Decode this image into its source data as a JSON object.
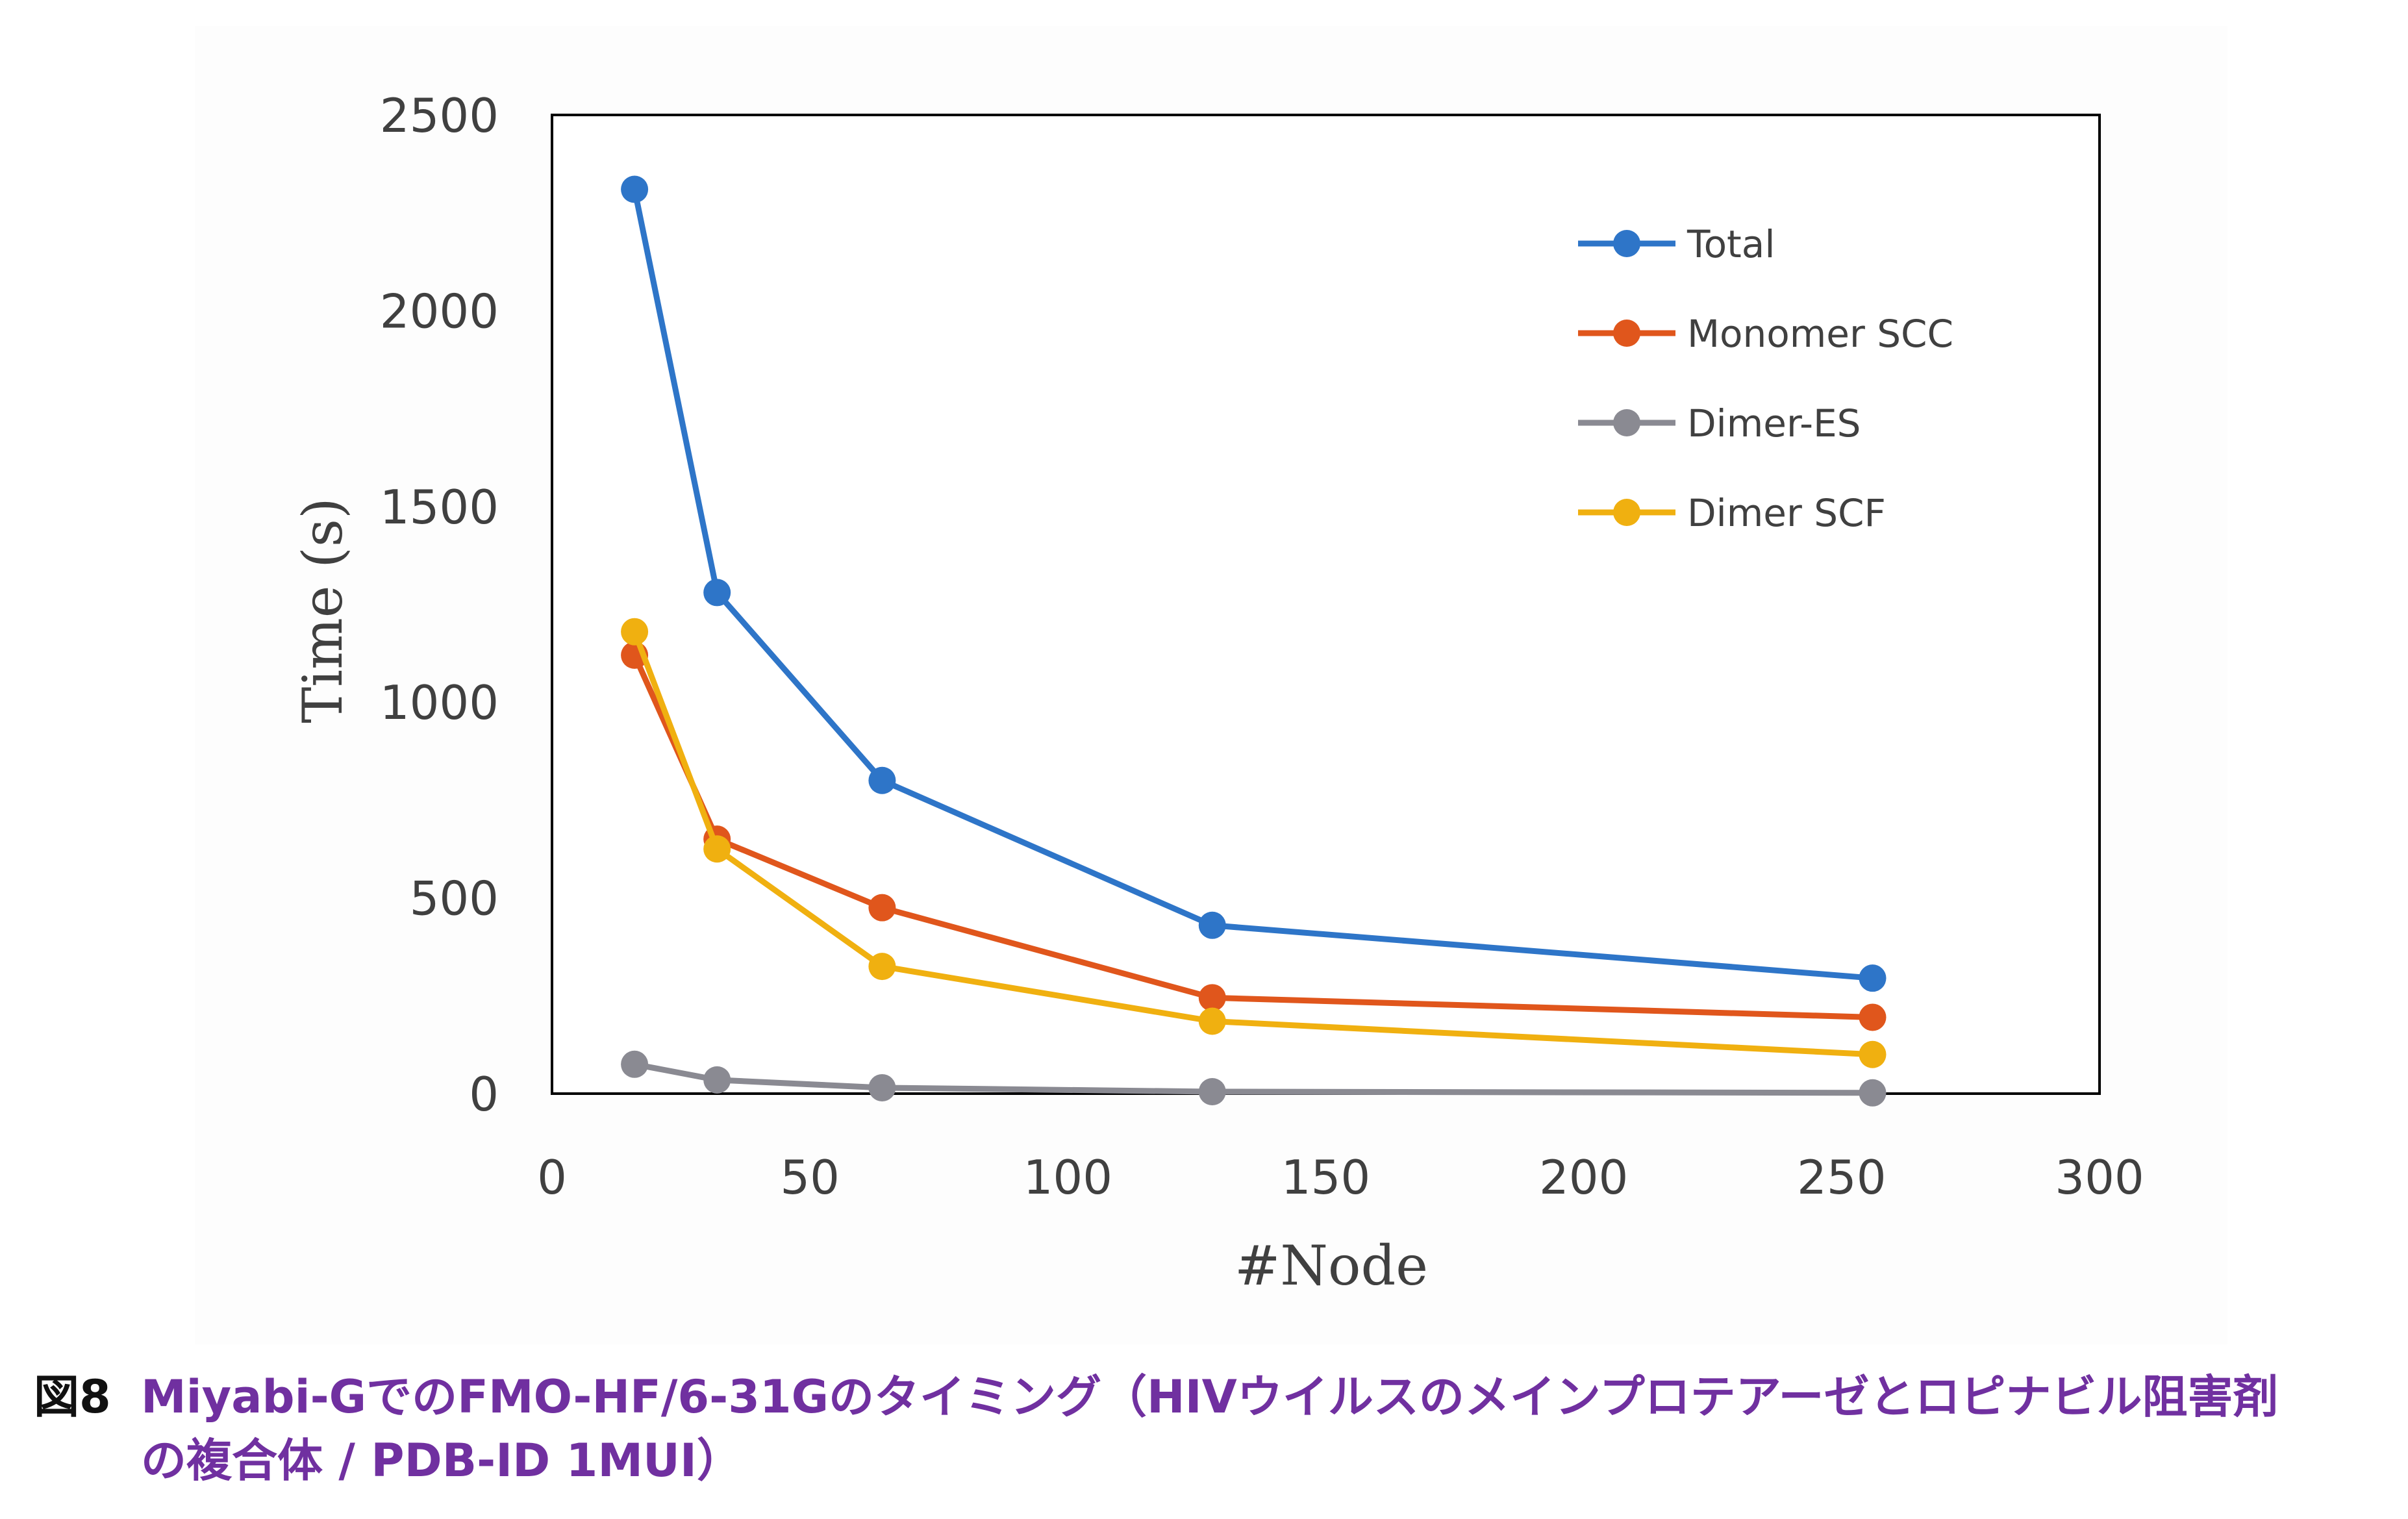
{
  "caption": {
    "figure_number": "図8",
    "line1": "Miyabi-GでのFMO-HF/6-31Gのタイミング（HIVウイルスのメインプロテアーゼとロピナビル阻害剤",
    "line2": "の複合体 / PDB-ID 1MUI）"
  },
  "colors": {
    "Total": "#2e75c8",
    "Monomer SCC": "#e0561c",
    "Dimer-ES": "#8a8a92",
    "Dimer SCF": "#f0b010",
    "axis": "#000000",
    "caption": "#7030a0"
  },
  "chart_data": {
    "type": "line",
    "title": "",
    "xlabel": "#Node",
    "ylabel": "Time (s)",
    "xlim": [
      0,
      300
    ],
    "ylim": [
      0,
      2500
    ],
    "xticks": [
      0,
      50,
      100,
      150,
      200,
      250,
      300
    ],
    "yticks": [
      0,
      500,
      1000,
      1500,
      2000,
      2500
    ],
    "legend_position": "top-right",
    "x": [
      16,
      32,
      64,
      128,
      256
    ],
    "series": [
      {
        "name": "Total",
        "values": [
          2310,
          1280,
          800,
          430,
          295
        ]
      },
      {
        "name": "Monomer SCC",
        "values": [
          1120,
          650,
          475,
          245,
          195
        ]
      },
      {
        "name": "Dimer-ES",
        "values": [
          75,
          35,
          15,
          5,
          2
        ]
      },
      {
        "name": "Dimer SCF",
        "values": [
          1180,
          625,
          325,
          185,
          100
        ]
      }
    ]
  }
}
